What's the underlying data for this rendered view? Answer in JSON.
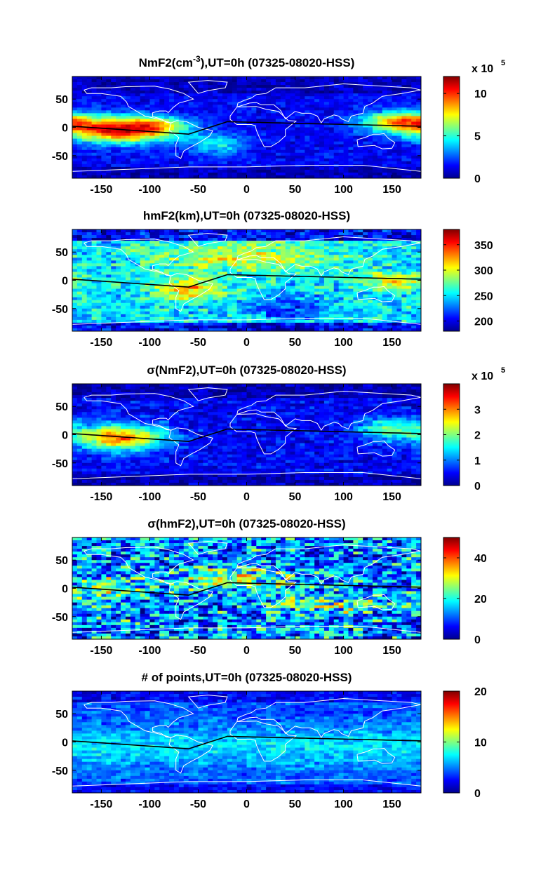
{
  "chart_data": [
    {
      "type": "heatmap",
      "title": "NmF2(cm-3),UT=0h (07325-08020-HSS)",
      "title_parts": [
        "NmF2(cm",
        "-3",
        "),UT=0h (07325-08020-HSS)"
      ],
      "xlim": [
        -180,
        180
      ],
      "ylim": [
        -90,
        90
      ],
      "x_ticks": [
        "-150",
        "-100",
        "-50",
        "0",
        "50",
        "100",
        "150"
      ],
      "y_ticks": [
        "50",
        "0",
        "-50"
      ],
      "colorbar": {
        "min": 0,
        "max": 1200000,
        "ticks": [
          "0",
          "5",
          "10"
        ],
        "tick_values": [
          0,
          5,
          10
        ],
        "range_scaled": [
          0,
          12
        ],
        "exponent_label": "x 10",
        "exponent_power": "5"
      },
      "pattern": "nmf2",
      "overlay": "coastlines and magnetic equator"
    },
    {
      "type": "heatmap",
      "title": "hmF2(km),UT=0h (07325-08020-HSS)",
      "xlim": [
        -180,
        180
      ],
      "ylim": [
        -90,
        90
      ],
      "x_ticks": [
        "-150",
        "-100",
        "-50",
        "0",
        "50",
        "100",
        "150"
      ],
      "y_ticks": [
        "50",
        "0",
        "-50"
      ],
      "colorbar": {
        "min": 180,
        "max": 380,
        "ticks": [
          "200",
          "250",
          "300",
          "350"
        ],
        "tick_values": [
          200,
          250,
          300,
          350
        ],
        "range_scaled": [
          180,
          380
        ],
        "exponent_label": "",
        "exponent_power": ""
      },
      "pattern": "hmf2",
      "overlay": "coastlines and magnetic equator"
    },
    {
      "type": "heatmap",
      "title": "σ(NmF2),UT=0h (07325-08020-HSS)",
      "xlim": [
        -180,
        180
      ],
      "ylim": [
        -90,
        90
      ],
      "x_ticks": [
        "-150",
        "-100",
        "-50",
        "0",
        "50",
        "100",
        "150"
      ],
      "y_ticks": [
        "50",
        "0",
        "-50"
      ],
      "colorbar": {
        "min": 0,
        "max": 400000,
        "ticks": [
          "0",
          "1",
          "2",
          "3"
        ],
        "tick_values": [
          0,
          1,
          2,
          3
        ],
        "range_scaled": [
          0,
          4
        ],
        "exponent_label": "x 10",
        "exponent_power": "5"
      },
      "pattern": "signmf2",
      "overlay": "coastlines and magnetic equator"
    },
    {
      "type": "heatmap",
      "title": "σ(hmF2),UT=0h (07325-08020-HSS)",
      "xlim": [
        -180,
        180
      ],
      "ylim": [
        -90,
        90
      ],
      "x_ticks": [
        "-150",
        "-100",
        "-50",
        "0",
        "50",
        "100",
        "150"
      ],
      "y_ticks": [
        "50",
        "0",
        "-50"
      ],
      "colorbar": {
        "min": 0,
        "max": 50,
        "ticks": [
          "0",
          "20",
          "40"
        ],
        "tick_values": [
          0,
          20,
          40
        ],
        "range_scaled": [
          0,
          50
        ],
        "exponent_label": "",
        "exponent_power": ""
      },
      "pattern": "sighmf2",
      "overlay": "coastlines and magnetic equator"
    },
    {
      "type": "heatmap",
      "title": "# of points,UT=0h (07325-08020-HSS)",
      "xlim": [
        -180,
        180
      ],
      "ylim": [
        -90,
        90
      ],
      "x_ticks": [
        "-150",
        "-100",
        "-50",
        "0",
        "50",
        "100",
        "150"
      ],
      "y_ticks": [
        "50",
        "0",
        "-50"
      ],
      "colorbar": {
        "min": 0,
        "max": 20,
        "ticks": [
          "0",
          "10",
          "20"
        ],
        "tick_values": [
          0,
          10,
          20
        ],
        "range_scaled": [
          0,
          20
        ],
        "exponent_label": "",
        "exponent_power": ""
      },
      "pattern": "points",
      "overlay": "coastlines and magnetic equator"
    }
  ]
}
